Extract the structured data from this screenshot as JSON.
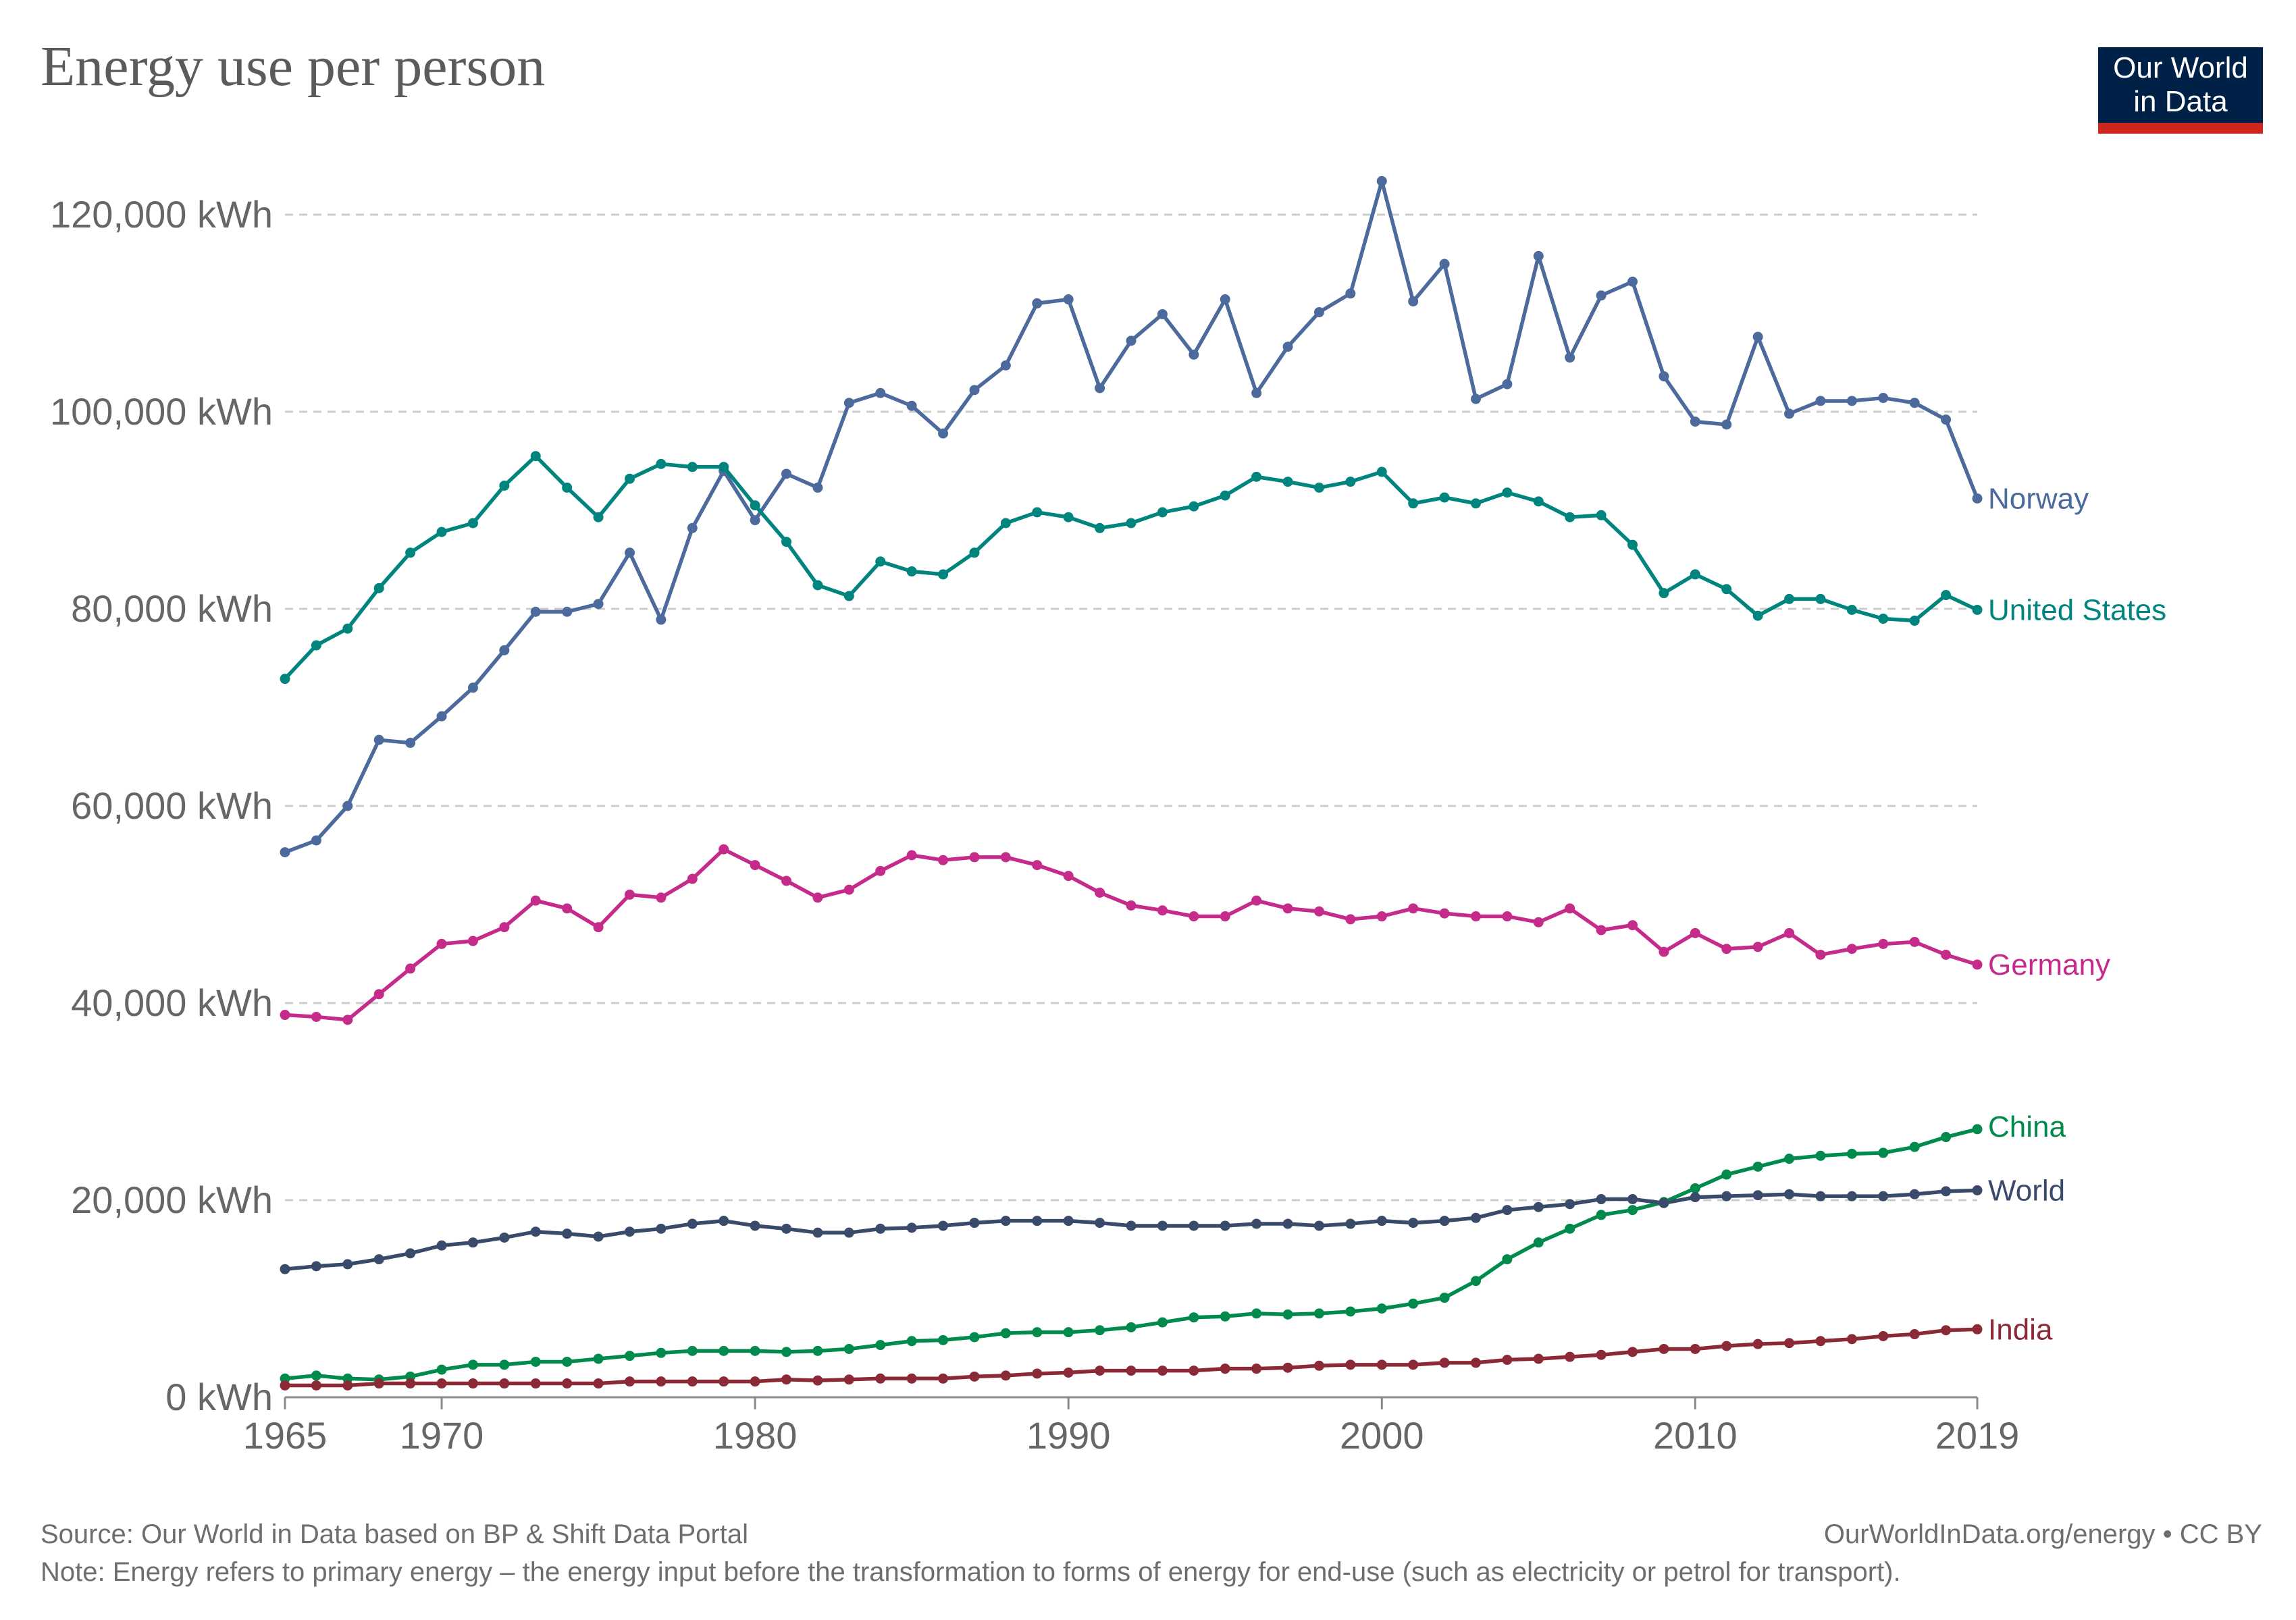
{
  "header": {
    "title": "Energy use per person",
    "logo_line1": "Our World",
    "logo_line2": "in Data"
  },
  "footer": {
    "source": "Source: Our World in Data based on BP & Shift Data Portal",
    "attribution": "OurWorldInData.org/energy • CC BY",
    "note": "Note: Energy refers to primary energy – the energy input before the transformation to forms of energy for end-use (such as electricity or petrol for transport)."
  },
  "colors": {
    "Norway": "#4c6a9c",
    "United States": "#00847e",
    "Germany": "#c42b8a",
    "China": "#008a4b",
    "World": "#3a4a6b",
    "India": "#8b2a36"
  },
  "chart_data": {
    "type": "line",
    "title": "Energy use per person",
    "xlabel": "",
    "ylabel": "",
    "xlim": [
      1965,
      2019
    ],
    "ylim": [
      0,
      120000
    ],
    "x_ticks": [
      1965,
      1970,
      1980,
      1990,
      2000,
      2010,
      2019
    ],
    "y_ticks": [
      0,
      20000,
      40000,
      60000,
      80000,
      100000,
      120000
    ],
    "y_tick_labels": [
      "0 kWh",
      "20,000 kWh",
      "40,000 kWh",
      "60,000 kWh",
      "80,000 kWh",
      "100,000 kWh",
      "120,000 kWh"
    ],
    "grid": "horizontal dashed",
    "legend": "inline labels at line ends (right)",
    "x": [
      1965,
      1966,
      1967,
      1968,
      1969,
      1970,
      1971,
      1972,
      1973,
      1974,
      1975,
      1976,
      1977,
      1978,
      1979,
      1980,
      1981,
      1982,
      1983,
      1984,
      1985,
      1986,
      1987,
      1988,
      1989,
      1990,
      1991,
      1992,
      1993,
      1994,
      1995,
      1996,
      1997,
      1998,
      1999,
      2000,
      2001,
      2002,
      2003,
      2004,
      2005,
      2006,
      2007,
      2008,
      2009,
      2010,
      2011,
      2012,
      2013,
      2014,
      2015,
      2016,
      2017,
      2018,
      2019
    ],
    "series": [
      {
        "name": "Norway",
        "values": [
          55300,
          56500,
          60000,
          66700,
          66400,
          69100,
          72000,
          75800,
          79700,
          79700,
          80500,
          85700,
          78900,
          88200,
          94000,
          89000,
          93700,
          92300,
          100900,
          101900,
          100600,
          97800,
          102200,
          104700,
          111000,
          111400,
          102400,
          107200,
          109900,
          105800,
          111400,
          101900,
          106600,
          110100,
          112000,
          123400,
          111200,
          115000,
          101300,
          102800,
          115800,
          105500,
          111800,
          113200,
          103600,
          99000,
          98700,
          107600,
          99800,
          101100,
          101100,
          101400,
          100900,
          99200,
          91200
        ]
      },
      {
        "name": "United States",
        "values": [
          72900,
          76300,
          78000,
          82100,
          85700,
          87800,
          88700,
          92500,
          95500,
          92300,
          89300,
          93200,
          94700,
          94400,
          94400,
          90500,
          86800,
          82400,
          81300,
          84800,
          83800,
          83500,
          85700,
          88700,
          89800,
          89300,
          88200,
          88700,
          89800,
          90400,
          91500,
          93400,
          92900,
          92300,
          92900,
          93900,
          90700,
          91300,
          90700,
          91800,
          90900,
          89300,
          89500,
          86500,
          81600,
          83500,
          82000,
          79300,
          81000,
          81000,
          79900,
          79000,
          78800,
          81400,
          79900
        ]
      },
      {
        "name": "Germany",
        "values": [
          38800,
          38600,
          38300,
          40900,
          43500,
          46000,
          46300,
          47700,
          50400,
          49600,
          47700,
          51000,
          50700,
          52600,
          55600,
          54000,
          52400,
          50700,
          51500,
          53400,
          55000,
          54500,
          54800,
          54800,
          54000,
          52900,
          51200,
          49900,
          49400,
          48800,
          48800,
          50400,
          49600,
          49300,
          48500,
          48800,
          49600,
          49100,
          48800,
          48800,
          48200,
          49600,
          47400,
          47900,
          45200,
          47100,
          45500,
          45700,
          47100,
          44900,
          45500,
          46000,
          46200,
          44900,
          43900
        ]
      },
      {
        "name": "China",
        "values": [
          1900,
          2200,
          1900,
          1800,
          2100,
          2800,
          3300,
          3300,
          3600,
          3600,
          3900,
          4200,
          4500,
          4700,
          4700,
          4700,
          4600,
          4700,
          4900,
          5300,
          5700,
          5800,
          6100,
          6500,
          6600,
          6600,
          6800,
          7100,
          7600,
          8100,
          8200,
          8500,
          8400,
          8500,
          8700,
          9000,
          9500,
          10100,
          11800,
          14000,
          15700,
          17100,
          18500,
          19000,
          19800,
          21200,
          22600,
          23400,
          24200,
          24500,
          24700,
          24800,
          25400,
          26400,
          27200
        ]
      },
      {
        "name": "World",
        "values": [
          13000,
          13300,
          13500,
          14000,
          14600,
          15400,
          15700,
          16200,
          16800,
          16600,
          16300,
          16800,
          17100,
          17600,
          17900,
          17400,
          17100,
          16700,
          16700,
          17100,
          17200,
          17400,
          17700,
          17900,
          17900,
          17900,
          17700,
          17400,
          17400,
          17400,
          17400,
          17600,
          17600,
          17400,
          17600,
          17900,
          17700,
          17900,
          18200,
          19000,
          19300,
          19600,
          20100,
          20100,
          19700,
          20300,
          20400,
          20500,
          20600,
          20400,
          20400,
          20400,
          20600,
          20900,
          21000
        ]
      },
      {
        "name": "India",
        "values": [
          1200,
          1200,
          1200,
          1400,
          1400,
          1400,
          1400,
          1400,
          1400,
          1400,
          1400,
          1600,
          1600,
          1600,
          1600,
          1600,
          1800,
          1700,
          1800,
          1900,
          1900,
          1900,
          2100,
          2200,
          2400,
          2500,
          2700,
          2700,
          2700,
          2700,
          2900,
          2900,
          3000,
          3200,
          3300,
          3300,
          3300,
          3500,
          3500,
          3800,
          3900,
          4100,
          4300,
          4600,
          4900,
          4900,
          5200,
          5400,
          5500,
          5700,
          5900,
          6200,
          6400,
          6800,
          6900
        ]
      }
    ]
  }
}
